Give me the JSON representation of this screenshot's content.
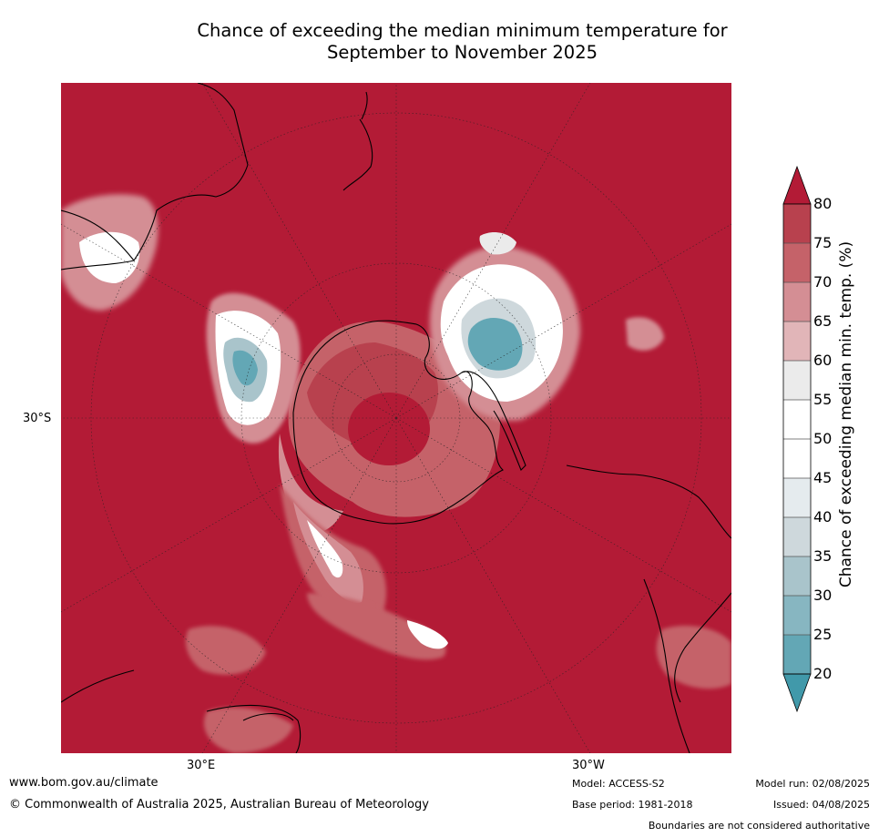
{
  "title_line1": "Chance of exceeding the median minimum temperature for",
  "title_line2": "September to November 2025",
  "map": {
    "projection": "south-polar stereographic",
    "lat_label": "30°S",
    "lon_labels": [
      "30°E",
      "30°W"
    ],
    "ocean_color": "#B31B36",
    "coastline_color": "#000000",
    "regions": [
      "Australia (north-west of map)",
      "New Zealand",
      "Antarctica (centre)",
      "South America (east of map)",
      "Southern Africa (south-west of map)"
    ]
  },
  "colorbar": {
    "label": "Chance of exceeding median min. temp. (%)",
    "ticks": [
      "80",
      "75",
      "70",
      "65",
      "60",
      "55",
      "50",
      "45",
      "40",
      "35",
      "30",
      "25",
      "20"
    ],
    "colors": {
      "75-80": "#B8414E",
      "70-75": "#C56269",
      "65-70": "#D48E94",
      "60-65": "#E1B5B8",
      "55-60": "#EBEBEB",
      "50-55": "#FFFFFF",
      "45-50": "#FFFFFF",
      "40-45": "#E5EBEE",
      "35-40": "#CED8DC",
      "30-35": "#A9C4CB",
      "25-30": "#87B6C1",
      "20-25": "#63A7B5",
      "<20": "#4199AA",
      ">80": "#B31B36"
    }
  },
  "footer": {
    "website": "www.bom.gov.au/climate",
    "copyright": "© Commonwealth of Australia 2025, Australian Bureau of Meteorology",
    "model": "Model: ACCESS-S2",
    "base_period": "Base period: 1981-2018",
    "model_run": "Model run: 02/08/2025",
    "issued": "Issued: 04/08/2025",
    "disclaimer": "Boundaries are not considered authoritative"
  }
}
